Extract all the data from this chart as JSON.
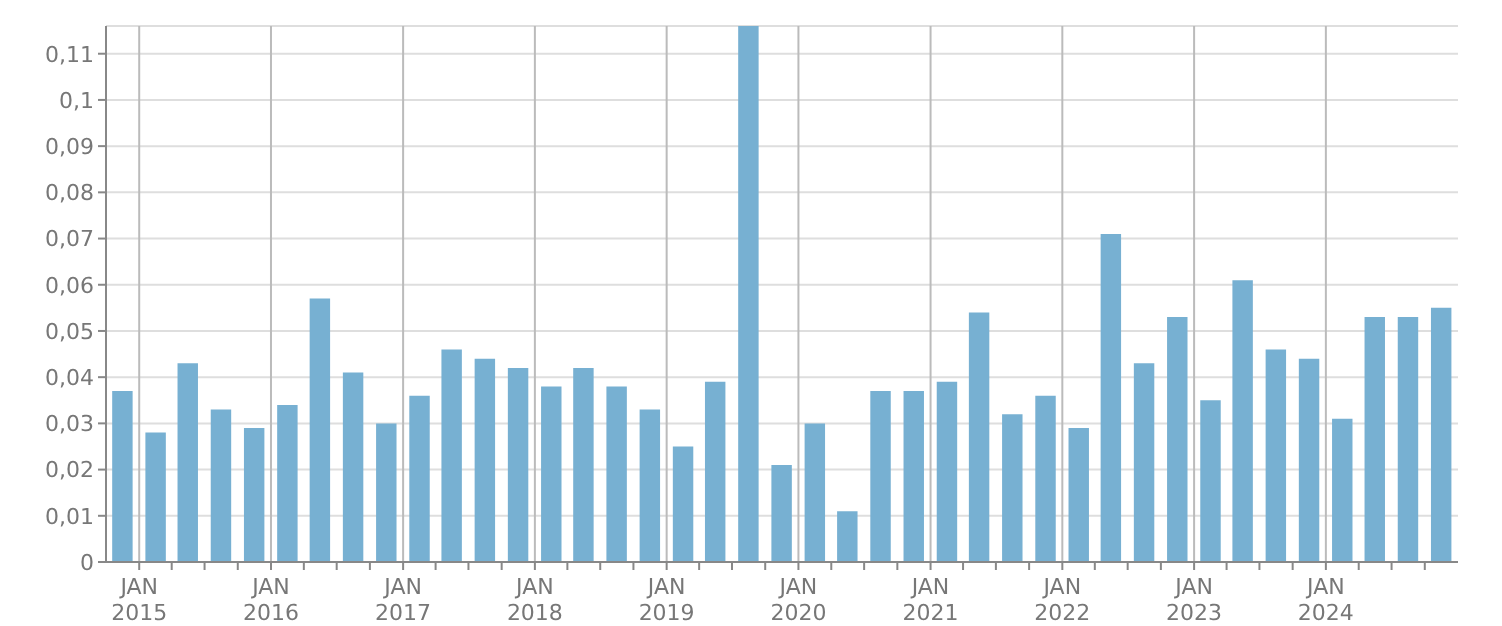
{
  "chart_data": {
    "type": "bar",
    "color": "#77b0d2",
    "x": [
      "2014-11-15",
      "2015-02-15",
      "2015-05-15",
      "2015-08-15",
      "2015-11-15",
      "2016-02-15",
      "2016-05-15",
      "2016-08-15",
      "2016-11-15",
      "2017-02-15",
      "2017-05-15",
      "2017-08-15",
      "2017-11-15",
      "2018-02-15",
      "2018-05-15",
      "2018-08-15",
      "2018-11-15",
      "2019-02-15",
      "2019-05-15",
      "2019-08-15",
      "2019-11-15",
      "2020-02-15",
      "2020-05-15",
      "2020-08-15",
      "2020-11-15",
      "2021-02-15",
      "2021-05-15",
      "2021-08-15",
      "2021-11-15",
      "2022-02-15",
      "2022-05-15",
      "2022-08-15",
      "2022-11-15",
      "2023-02-15",
      "2023-05-15",
      "2023-08-15",
      "2023-11-15",
      "2024-02-15",
      "2024-05-15",
      "2024-08-15",
      "2024-11-15"
    ],
    "values": [
      0.037,
      0.028,
      0.043,
      0.033,
      0.029,
      0.034,
      0.057,
      0.041,
      0.03,
      0.036,
      0.046,
      0.044,
      0.042,
      0.038,
      0.042,
      0.038,
      0.033,
      0.025,
      0.039,
      0.116,
      0.021,
      0.03,
      0.011,
      0.037,
      0.037,
      0.039,
      0.054,
      0.032,
      0.036,
      0.029,
      0.071,
      0.043,
      0.053,
      0.035,
      0.061,
      0.046,
      0.044,
      0.031,
      0.053,
      0.053,
      0.055
    ],
    "xlim": [
      "2014-10-01",
      "2025-01-01"
    ],
    "xticks": [
      {
        "value": "2015-01-01",
        "label": "JAN\n2015"
      },
      {
        "value": "2015-04-01",
        "label": null
      },
      {
        "value": "2015-07-01",
        "label": null
      },
      {
        "value": "2015-10-01",
        "label": null
      },
      {
        "value": "2016-01-01",
        "label": "JAN\n2016"
      },
      {
        "value": "2016-04-01",
        "label": null
      },
      {
        "value": "2016-07-01",
        "label": null
      },
      {
        "value": "2016-10-01",
        "label": null
      },
      {
        "value": "2017-01-01",
        "label": "JAN\n2017"
      },
      {
        "value": "2017-04-01",
        "label": null
      },
      {
        "value": "2017-07-01",
        "label": null
      },
      {
        "value": "2017-10-01",
        "label": null
      },
      {
        "value": "2018-01-01",
        "label": "JAN\n2018"
      },
      {
        "value": "2018-04-01",
        "label": null
      },
      {
        "value": "2018-07-01",
        "label": null
      },
      {
        "value": "2018-10-01",
        "label": null
      },
      {
        "value": "2019-01-01",
        "label": "JAN\n2019"
      },
      {
        "value": "2019-04-01",
        "label": null
      },
      {
        "value": "2019-07-01",
        "label": null
      },
      {
        "value": "2019-10-01",
        "label": null
      },
      {
        "value": "2020-01-01",
        "label": "JAN\n2020"
      },
      {
        "value": "2020-04-01",
        "label": null
      },
      {
        "value": "2020-07-01",
        "label": null
      },
      {
        "value": "2020-10-01",
        "label": null
      },
      {
        "value": "2021-01-01",
        "label": "JAN\n2021"
      },
      {
        "value": "2021-04-01",
        "label": null
      },
      {
        "value": "2021-07-01",
        "label": null
      },
      {
        "value": "2021-10-01",
        "label": null
      },
      {
        "value": "2022-01-01",
        "label": "JAN\n2022"
      },
      {
        "value": "2022-04-01",
        "label": null
      },
      {
        "value": "2022-07-01",
        "label": null
      },
      {
        "value": "2022-10-01",
        "label": null
      },
      {
        "value": "2023-01-01",
        "label": "JAN\n2023"
      },
      {
        "value": "2023-04-01",
        "label": null
      },
      {
        "value": "2023-07-01",
        "label": null
      },
      {
        "value": "2023-10-01",
        "label": null
      },
      {
        "value": "2024-01-01",
        "label": "JAN\n2024"
      },
      {
        "value": "2024-04-01",
        "label": null
      },
      {
        "value": "2024-07-01",
        "label": null
      },
      {
        "value": "2024-10-01",
        "label": null
      }
    ],
    "ylim": [
      0,
      0.116
    ],
    "yticks": [
      {
        "value": 0,
        "label": "0"
      },
      {
        "value": 0.01,
        "label": "0,01"
      },
      {
        "value": 0.02,
        "label": "0,02"
      },
      {
        "value": 0.03,
        "label": "0,03"
      },
      {
        "value": 0.04,
        "label": "0,04"
      },
      {
        "value": 0.05,
        "label": "0,05"
      },
      {
        "value": 0.06,
        "label": "0,06"
      },
      {
        "value": 0.07,
        "label": "0,07"
      },
      {
        "value": 0.08,
        "label": "0,08"
      },
      {
        "value": 0.09,
        "label": "0,09"
      },
      {
        "value": 0.1,
        "label": "0,1"
      },
      {
        "value": 0.11,
        "label": "0,11"
      }
    ],
    "grid": true
  }
}
